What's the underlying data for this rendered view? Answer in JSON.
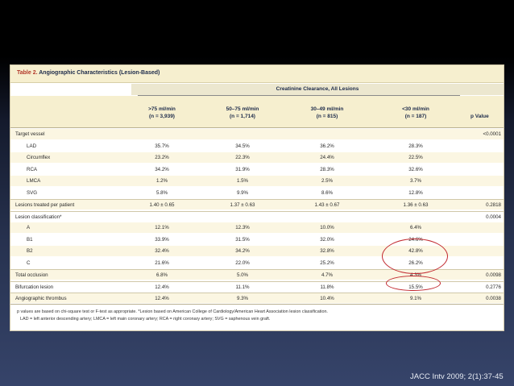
{
  "table": {
    "caption_label": "Table 2.",
    "caption_text": "Angiographic Characteristics (Lesion-Based)",
    "group_header": "Creatinine Clearance, All Lesions",
    "columns": [
      {
        "line1": ">75 ml/min",
        "line2": "(n = 3,939)"
      },
      {
        "line1": "50–75 ml/min",
        "line2": "(n = 1,714)"
      },
      {
        "line1": "30–49 ml/min",
        "line2": "(n = 815)"
      },
      {
        "line1": "<30 ml/min",
        "line2": "(n = 187)"
      }
    ],
    "pvalue_header": "p Value",
    "rows": [
      {
        "label": "Target vessel",
        "indent": false,
        "values": [
          "",
          "",
          "",
          ""
        ],
        "p": "<0.0001",
        "section": true
      },
      {
        "label": "LAD",
        "indent": true,
        "values": [
          "35.7%",
          "34.5%",
          "36.2%",
          "28.3%"
        ],
        "p": ""
      },
      {
        "label": "Circumflex",
        "indent": true,
        "values": [
          "23.2%",
          "22.3%",
          "24.4%",
          "22.5%"
        ],
        "p": ""
      },
      {
        "label": "RCA",
        "indent": true,
        "values": [
          "34.2%",
          "31.9%",
          "28.3%",
          "32.6%"
        ],
        "p": ""
      },
      {
        "label": "LMCA",
        "indent": true,
        "values": [
          "1.2%",
          "1.5%",
          "2.5%",
          "3.7%"
        ],
        "p": ""
      },
      {
        "label": "SVG",
        "indent": true,
        "values": [
          "5.8%",
          "9.9%",
          "8.6%",
          "12.8%"
        ],
        "p": ""
      },
      {
        "label": "Lesions treated per patient",
        "indent": false,
        "values": [
          "1.40 ± 0.65",
          "1.37 ± 0.63",
          "1.43 ± 0.67",
          "1.36 ± 0.63"
        ],
        "p": "0.2818",
        "section": true
      },
      {
        "label": "Lesion classification*",
        "indent": false,
        "values": [
          "",
          "",
          "",
          ""
        ],
        "p": "0.0004",
        "section": true
      },
      {
        "label": "A",
        "indent": true,
        "values": [
          "12.1%",
          "12.3%",
          "10.0%",
          "6.4%"
        ],
        "p": ""
      },
      {
        "label": "B1",
        "indent": true,
        "values": [
          "33.9%",
          "31.5%",
          "32.0%",
          "24.6%"
        ],
        "p": ""
      },
      {
        "label": "B2",
        "indent": true,
        "values": [
          "32.4%",
          "34.2%",
          "32.8%",
          "42.8%"
        ],
        "p": ""
      },
      {
        "label": "C",
        "indent": true,
        "values": [
          "21.6%",
          "22.0%",
          "25.2%",
          "26.2%"
        ],
        "p": ""
      },
      {
        "label": "Total occlusion",
        "indent": false,
        "values": [
          "6.8%",
          "5.0%",
          "4.7%",
          "4.3%"
        ],
        "p": "0.0098",
        "section": true
      },
      {
        "label": "Bifurcation lesion",
        "indent": false,
        "values": [
          "12.4%",
          "11.1%",
          "11.8%",
          "15.5%"
        ],
        "p": "0.2776",
        "section": true
      },
      {
        "label": "Angiographic thrombus",
        "indent": false,
        "values": [
          "12.4%",
          "9.3%",
          "10.4%",
          "9.1%"
        ],
        "p": "0.0038",
        "section": true
      }
    ],
    "footnote_line1": "p values are based on chi-square test or F-test as appropriate. *Lesion based on American College of Cardiology/American Heart Association lesion classification.",
    "footnote_line2": "LAD = left anterior descending artery; LMCA = left main coronary artery; RCA = right coronary artery; SVG = saphenous vein graft."
  },
  "highlight_color": "#c1272d",
  "citation": "JACC Intv 2009; 2(1):37-45"
}
